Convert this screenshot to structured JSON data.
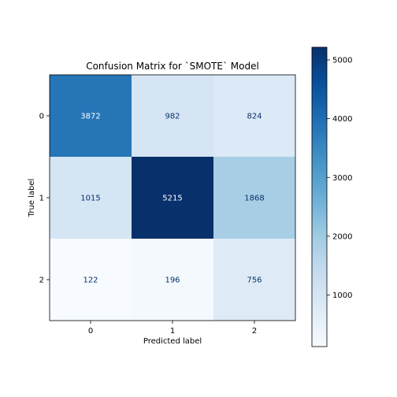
{
  "chart_data": {
    "type": "heatmap",
    "title": "Confusion Matrix for `SMOTE` Model",
    "xlabel": "Predicted label",
    "ylabel": "True label",
    "x_categories": [
      "0",
      "1",
      "2"
    ],
    "y_categories": [
      "0",
      "1",
      "2"
    ],
    "values": [
      [
        3872,
        982,
        824
      ],
      [
        1015,
        5215,
        1868
      ],
      [
        122,
        196,
        756
      ]
    ],
    "colormap": "Blues",
    "colorbar": {
      "range": [
        122,
        5215
      ],
      "ticks": [
        1000,
        2000,
        3000,
        4000,
        5000
      ],
      "tick_labels": [
        "1000",
        "2000",
        "3000",
        "4000",
        "5000"
      ]
    }
  }
}
